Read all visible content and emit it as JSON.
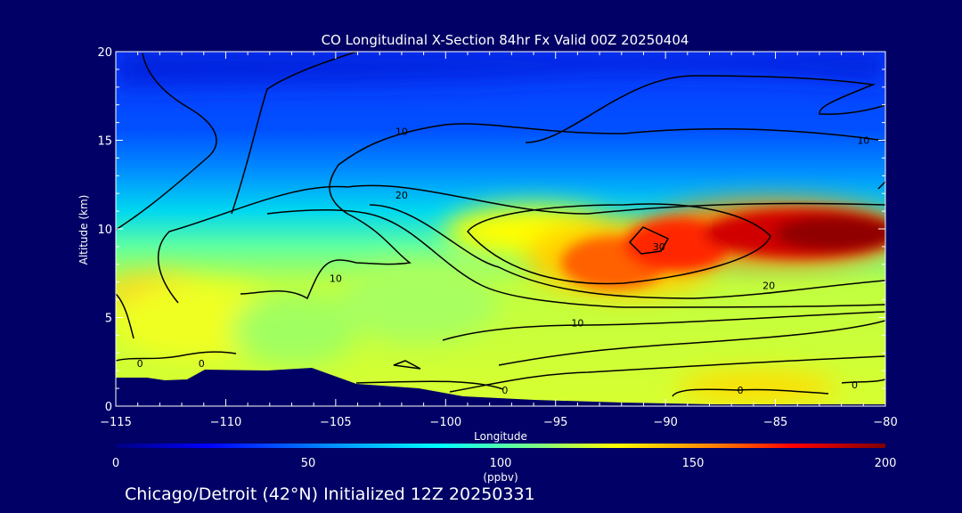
{
  "chart_data": {
    "type": "heatmap",
    "title": "CO Longitudinal X-Section 84hr  Fx Valid 00Z 20250404",
    "xlabel": "Longitude",
    "ylabel": "Altitude (km)",
    "xlim": [
      -115,
      -80
    ],
    "ylim": [
      0,
      20
    ],
    "x_ticks": [
      -115,
      -110,
      -105,
      -100,
      -95,
      -90,
      -85,
      -80
    ],
    "x_tick_labels": [
      "−115",
      "−110",
      "−105",
      "−100",
      "−95",
      "−90",
      "−85",
      "−80"
    ],
    "y_ticks": [
      0,
      5,
      10,
      15,
      20
    ],
    "y_tick_labels": [
      "0",
      "5",
      "10",
      "15",
      "20"
    ],
    "colorbar": {
      "min": 0,
      "max": 200,
      "ticks": [
        0,
        50,
        100,
        150,
        200
      ],
      "tick_labels": [
        "0",
        "50",
        "100",
        "150",
        "200"
      ],
      "unit_label": "(ppbv)",
      "colors": [
        "#000080",
        "#0000ff",
        "#00a0ff",
        "#00ffff",
        "#80ff80",
        "#ffff00",
        "#ff8000",
        "#ff0000",
        "#800000"
      ]
    },
    "contour_labels": [
      {
        "text": "10",
        "lon": -102,
        "alt": 15.5
      },
      {
        "text": "10",
        "lon": -81,
        "alt": 15.0
      },
      {
        "text": "20",
        "lon": -102,
        "alt": 11.9
      },
      {
        "text": "30",
        "lon": -90.3,
        "alt": 9.0
      },
      {
        "text": "20",
        "lon": -85.3,
        "alt": 6.8
      },
      {
        "text": "10",
        "lon": -94,
        "alt": 4.7
      },
      {
        "text": "10",
        "lon": -105,
        "alt": 7.2
      },
      {
        "text": "0",
        "lon": -113.9,
        "alt": 2.4
      },
      {
        "text": "0",
        "lon": -111.1,
        "alt": 2.4
      },
      {
        "text": "0",
        "lon": -97.3,
        "alt": 0.9
      },
      {
        "text": "0",
        "lon": -86.6,
        "alt": 0.9
      },
      {
        "text": "0",
        "lon": -81.4,
        "alt": 1.2
      }
    ],
    "grid": false,
    "legend": "colorbar-bottom"
  },
  "footer": {
    "text": "Chicago/Detroit (42°N) Initialized 12Z 20250331"
  }
}
